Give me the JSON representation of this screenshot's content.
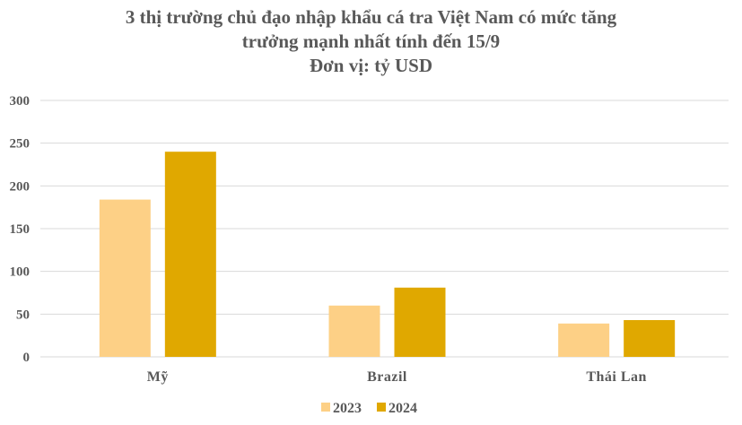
{
  "chart_data": {
    "type": "bar",
    "title": [
      "3 thị trường chủ đạo nhập khẩu cá tra Việt Nam có mức tăng",
      "trưởng mạnh nhất tính đến 15/9",
      "Đơn vị: tỷ USD"
    ],
    "categories": [
      "Mỹ",
      "Brazil",
      "Thái Lan"
    ],
    "series": [
      {
        "name": "2023",
        "values": [
          184,
          60,
          39
        ],
        "color": "#FDD086"
      },
      {
        "name": "2024",
        "values": [
          240,
          81,
          43
        ],
        "color": "#E0A800"
      }
    ],
    "ylim": [
      0,
      300
    ],
    "yticks": [
      0,
      50,
      100,
      150,
      200,
      250,
      300
    ],
    "grid": true,
    "legend": "bottom-left",
    "xlabel": "",
    "ylabel": ""
  }
}
